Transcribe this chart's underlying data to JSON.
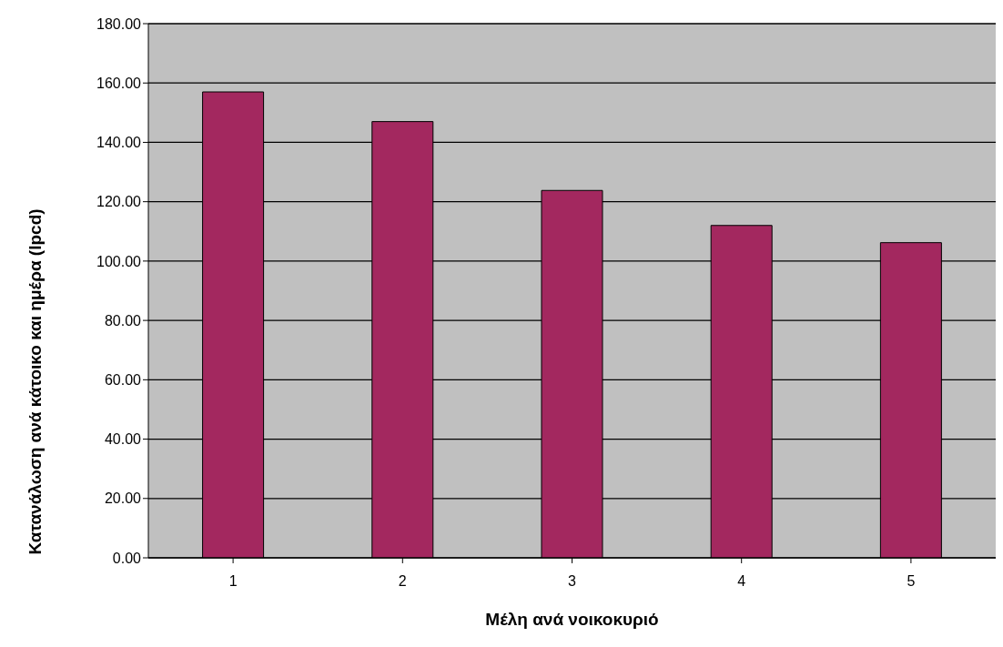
{
  "chart_data": {
    "type": "bar",
    "xlabel": "Μέλη ανά νοικοκυριό",
    "ylabel": "Κατανάλωση ανά κάτοικο και ημέρα (lpcd)",
    "categories": [
      "1",
      "2",
      "3",
      "4",
      "5"
    ],
    "values": [
      157,
      147,
      123.8,
      112,
      106.2
    ],
    "color": "#a3285f",
    "ylim": [
      0,
      180
    ],
    "yticks": [
      {
        "value": 0,
        "label": "0.00"
      },
      {
        "value": 20,
        "label": "20.00"
      },
      {
        "value": 40,
        "label": "40.00"
      },
      {
        "value": 60,
        "label": "60.00"
      },
      {
        "value": 80,
        "label": "80.00"
      },
      {
        "value": 100,
        "label": "100.00"
      },
      {
        "value": 120,
        "label": "120.00"
      },
      {
        "value": 140,
        "label": "140.00"
      },
      {
        "value": 160,
        "label": "160.00"
      },
      {
        "value": 180,
        "label": "180.00"
      }
    ],
    "grid": "y"
  }
}
